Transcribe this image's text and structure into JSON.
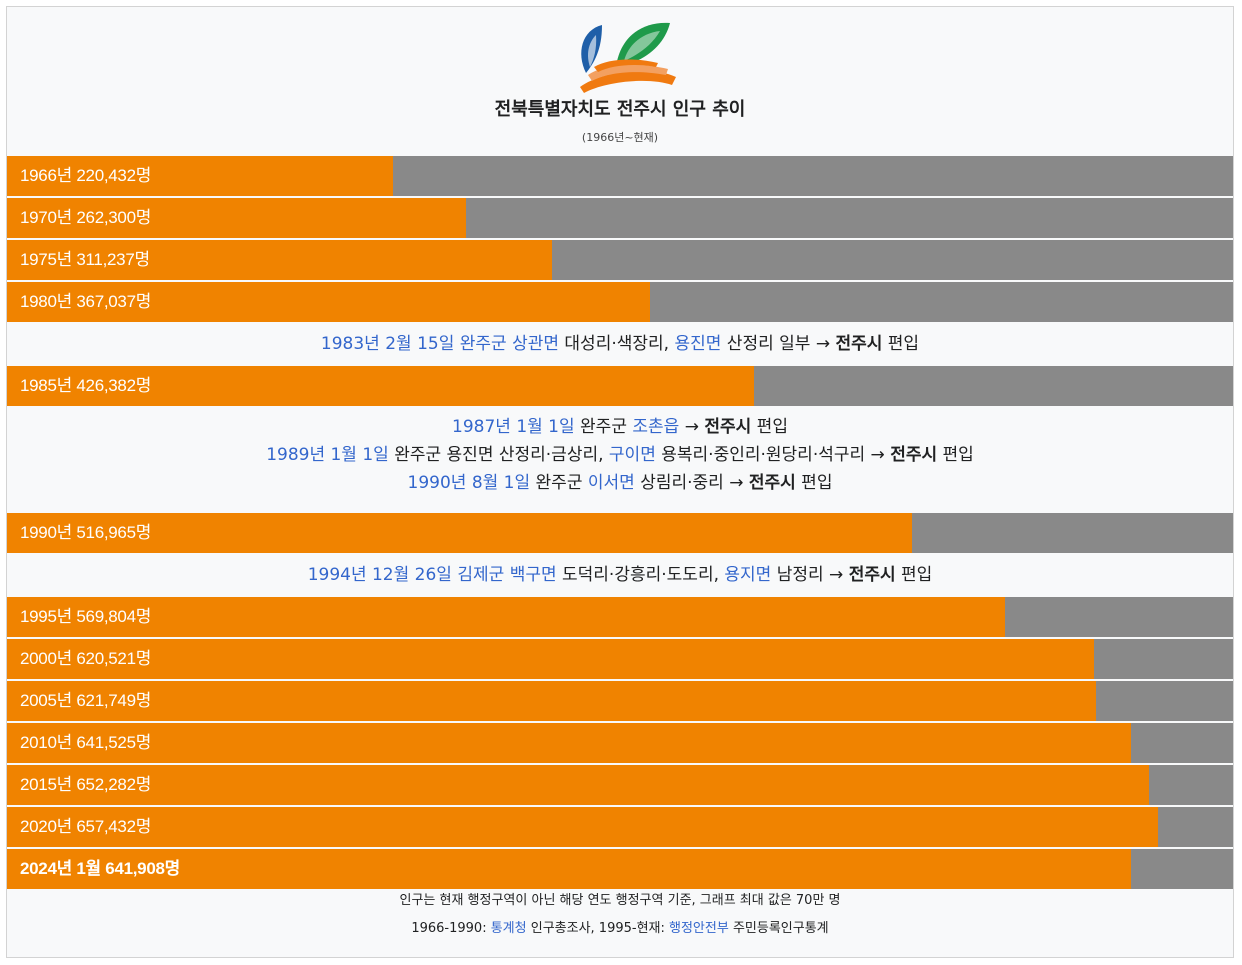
{
  "title": "전북특별자치도 전주시 인구 추이",
  "subtitle": "(1966년~현재)",
  "colors": {
    "bar": "#f08300",
    "track": "#898989",
    "link": "#3366cc"
  },
  "chart_data": {
    "type": "bar",
    "orientation": "horizontal",
    "max": 700000,
    "unit": "명",
    "categories": [
      "1966년",
      "1970년",
      "1975년",
      "1980년",
      "1985년",
      "1990년",
      "1995년",
      "2000년",
      "2005년",
      "2010년",
      "2015년",
      "2020년",
      "2024년 1월"
    ],
    "values": [
      220432,
      262300,
      311237,
      367037,
      426382,
      516965,
      569804,
      620521,
      621749,
      641525,
      652282,
      657432,
      641908
    ],
    "labels": [
      "1966년 220,432명",
      "1970년 262,300명",
      "1975년 311,237명",
      "1980년 367,037명",
      "1985년 426,382명",
      "1990년 516,965명",
      "1995년 569,804명",
      "2000년 620,521명",
      "2005년 621,749명",
      "2010년 641,525명",
      "2015년 652,282명",
      "2020년 657,432명",
      "2024년 1월 641,908명"
    ]
  },
  "notes": [
    {
      "after": 3,
      "lines": [
        [
          {
            "t": "1983년 2월 15일",
            "s": "link"
          },
          {
            "t": " "
          },
          {
            "t": "완주군",
            "s": "link"
          },
          {
            "t": " "
          },
          {
            "t": "상관면",
            "s": "link"
          },
          {
            "t": " 대성리·색장리, "
          },
          {
            "t": "용진면",
            "s": "link"
          },
          {
            "t": " 산정리 일부 → "
          },
          {
            "t": "전주시",
            "s": "bold"
          },
          {
            "t": " 편입"
          }
        ]
      ]
    },
    {
      "after": 4,
      "lines": [
        [
          {
            "t": "1987년 1월 1일",
            "s": "link"
          },
          {
            "t": " 완주군 "
          },
          {
            "t": "조촌읍",
            "s": "link"
          },
          {
            "t": " → "
          },
          {
            "t": "전주시",
            "s": "bold"
          },
          {
            "t": " 편입"
          }
        ],
        [
          {
            "t": "1989년 1월 1일",
            "s": "link"
          },
          {
            "t": " 완주군 용진면 산정리·금상리, "
          },
          {
            "t": "구이면",
            "s": "link"
          },
          {
            "t": " 용복리·중인리·원당리·석구리 → "
          },
          {
            "t": "전주시",
            "s": "bold"
          },
          {
            "t": " 편입"
          }
        ],
        [
          {
            "t": "1990년 8월 1일",
            "s": "link"
          },
          {
            "t": " 완주군 "
          },
          {
            "t": "이서면",
            "s": "link"
          },
          {
            "t": " 상림리·중리 → "
          },
          {
            "t": "전주시",
            "s": "bold"
          },
          {
            "t": " 편입"
          }
        ]
      ]
    },
    {
      "after": 5,
      "lines": [
        [
          {
            "t": "1994년 12월 26일",
            "s": "link"
          },
          {
            "t": " "
          },
          {
            "t": "김제군",
            "s": "link"
          },
          {
            "t": " "
          },
          {
            "t": "백구면",
            "s": "link"
          },
          {
            "t": " 도덕리·강흥리·도도리, "
          },
          {
            "t": "용지면",
            "s": "link"
          },
          {
            "t": " 남정리 → "
          },
          {
            "t": "전주시",
            "s": "bold"
          },
          {
            "t": " 편입"
          }
        ]
      ]
    }
  ],
  "footer": {
    "line1": "인구는 현재 행정구역이 아닌 해당 연도 행정구역 기준, 그래프 최대 값은 70만 명",
    "line2_pre": "1966-1990: ",
    "line2_link1": "통계청",
    "line2_mid": " 인구총조사, 1995-현재: ",
    "line2_link2": "행정안전부",
    "line2_post": " 주민등록인구통계"
  }
}
